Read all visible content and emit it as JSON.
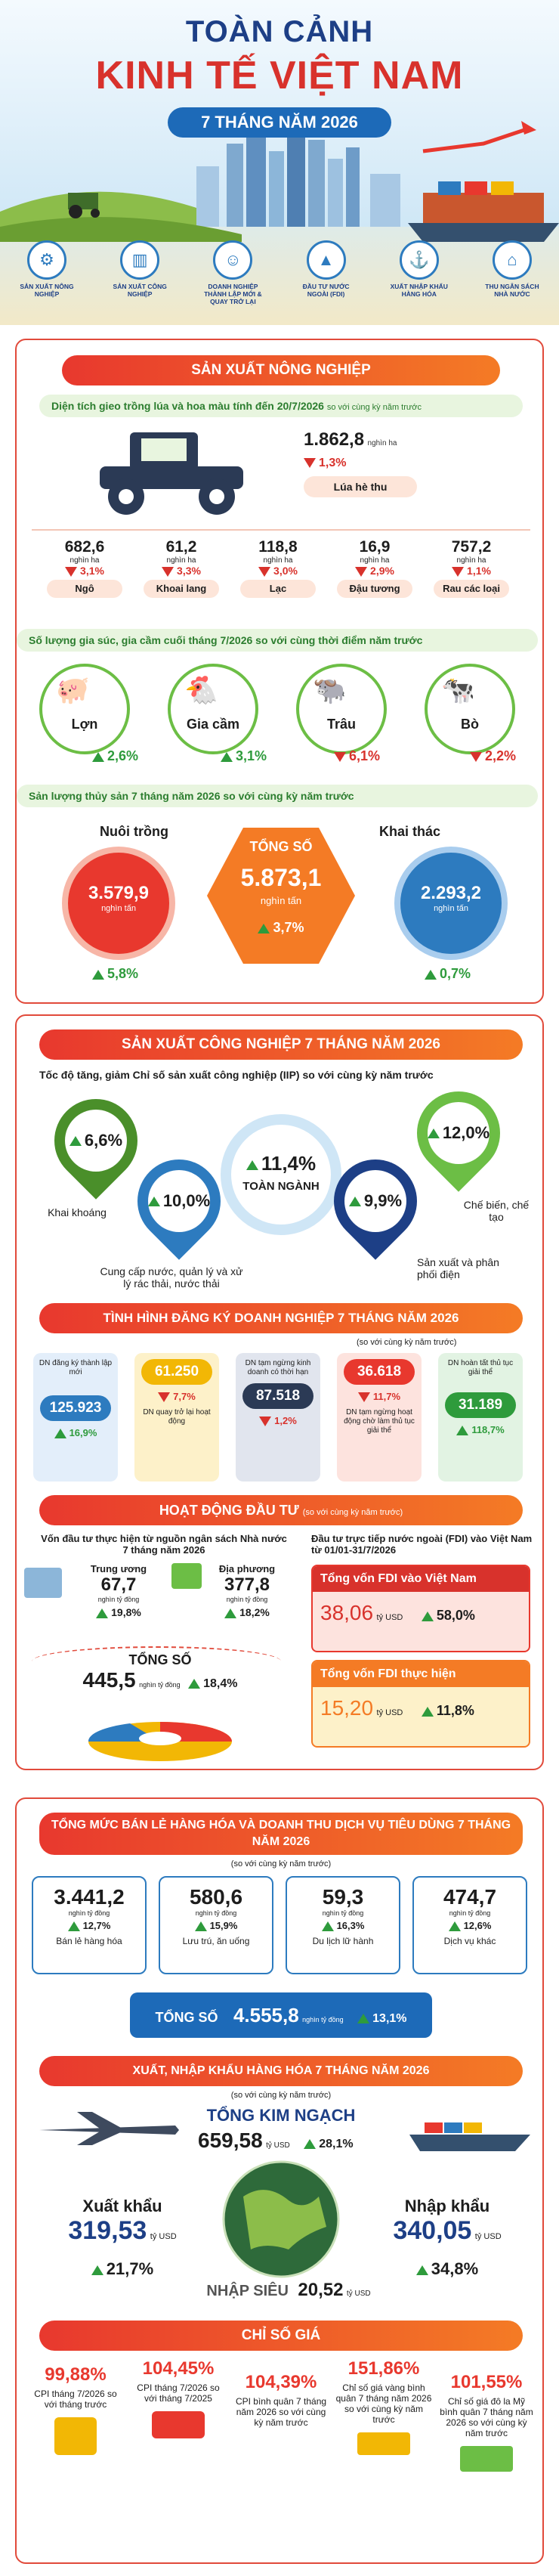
{
  "header": {
    "title_line1": "TOÀN CẢNH",
    "title_line2": "KINH TẾ VIỆT NAM",
    "subtitle": "7 THÁNG NĂM 2026",
    "icons": [
      {
        "icon": "tractor-icon",
        "label": "SẢN XUẤT NÔNG NGHIỆP"
      },
      {
        "icon": "factory-icon",
        "label": "SẢN XUẤT CÔNG NGHIỆP"
      },
      {
        "icon": "people-icon",
        "label": "DOANH NGHIỆP THÀNH LẬP MỚI & QUAY TRỞ LẠI"
      },
      {
        "icon": "chart-icon",
        "label": "ĐẦU TƯ NƯỚC NGOÀI (FDI)"
      },
      {
        "icon": "ship-icon",
        "label": "XUẤT NHẬP KHẨU HÀNG HÓA"
      },
      {
        "icon": "bank-icon",
        "label": "THU NGÂN SÁCH NHÀ NƯỚC"
      }
    ]
  },
  "agri": {
    "band": "SẢN XUẤT NÔNG NGHIỆP",
    "area_header": "Diện tích gieo trồng lúa và hoa màu tính đến 20/7/2026",
    "area_header_note": "so với cùng kỳ năm trước",
    "rice": {
      "value": "1.862,8",
      "unit": "nghìn ha",
      "pct": "1,3%",
      "name": "Lúa hè thu"
    },
    "crops": [
      {
        "value": "682,6",
        "unit": "nghìn ha",
        "pct": "3,1%",
        "name": "Ngô"
      },
      {
        "value": "61,2",
        "unit": "nghìn ha",
        "pct": "3,3%",
        "name": "Khoai lang"
      },
      {
        "value": "118,8",
        "unit": "nghìn ha",
        "pct": "3,0%",
        "name": "Lạc"
      },
      {
        "value": "16,9",
        "unit": "nghìn ha",
        "pct": "2,9%",
        "name": "Đậu tương"
      },
      {
        "value": "757,2",
        "unit": "nghìn ha",
        "pct": "1,1%",
        "name": "Rau các loại"
      }
    ],
    "livestock_header": "Số lượng gia súc, gia cầm cuối tháng 7/2026 so với cùng thời điểm năm trước",
    "livestock": [
      {
        "name": "Lợn",
        "pct": "2,6%",
        "dir": "up"
      },
      {
        "name": "Gia cầm",
        "pct": "3,1%",
        "dir": "up"
      },
      {
        "name": "Trâu",
        "pct": "6,1%",
        "dir": "down"
      },
      {
        "name": "Bò",
        "pct": "2,2%",
        "dir": "down"
      }
    ],
    "fish_header": "Sản lượng thủy sản 7 tháng năm 2026 so với cùng kỳ năm trước",
    "fish": {
      "farm": {
        "label": "Nuôi trồng",
        "value": "3.579,9",
        "unit": "nghìn tấn",
        "pct": "5,8%"
      },
      "total": {
        "label": "TỔNG SỐ",
        "value": "5.873,1",
        "unit": "nghìn tấn",
        "pct": "3,7%"
      },
      "catch": {
        "label": "Khai thác",
        "value": "2.293,2",
        "unit": "nghìn tấn",
        "pct": "0,7%"
      }
    }
  },
  "industry": {
    "band": "SẢN XUẤT CÔNG NGHIỆP 7 THÁNG NĂM 2026",
    "iip_header": "Tốc độ tăng, giảm Chỉ số sản xuất công nghiệp (IIP) so với cùng kỳ năm trước",
    "items": [
      {
        "name": "Khai khoáng",
        "pct": "6,6%",
        "dir": "up"
      },
      {
        "name": "Cung cấp nước, quản lý và xử lý rác thải, nước thải",
        "pct": "10,0%",
        "dir": "up"
      },
      {
        "name": "TOÀN NGÀNH",
        "pct": "11,4%",
        "dir": "up"
      },
      {
        "name": "Sản xuất và phân phối điện",
        "pct": "9,9%",
        "dir": "up"
      },
      {
        "name": "Chế biến, chế tạo",
        "pct": "12,0%",
        "dir": "up"
      }
    ]
  },
  "business": {
    "band": "TÌNH HÌNH ĐĂNG KÝ DOANH NGHIỆP 7 THÁNG NĂM 2026",
    "note": "(so với cùng kỳ năm trước)",
    "items": [
      {
        "name": "DN đăng ký thành lập mới",
        "value": "125.923",
        "pct": "16,9%",
        "dir": "up",
        "color": "#2d7bbf"
      },
      {
        "name": "DN quay trở lại hoạt động",
        "value": "61.250",
        "pct": "7,7%",
        "dir": "down",
        "color": "#f2b705"
      },
      {
        "name": "DN tạm ngừng kinh doanh có thời hạn",
        "value": "87.518",
        "pct": "1,2%",
        "dir": "down",
        "color": "#2b3a55"
      },
      {
        "name": "DN tạm ngừng hoạt động chờ làm thủ tục giải thể",
        "value": "36.618",
        "pct": "11,7%",
        "dir": "down",
        "color": "#e8382e"
      },
      {
        "name": "DN hoàn tất thủ tục giải thể",
        "value": "31.189",
        "pct": "118,7%",
        "dir": "up",
        "color": "#2e9b3c"
      }
    ]
  },
  "invest": {
    "band": "HOẠT ĐỘNG ĐẦU TƯ",
    "note": "(so với cùng kỳ năm trước)",
    "state_header": "Vốn đầu tư thực hiện từ nguồn ngân sách Nhà nước 7 tháng năm 2026",
    "central": {
      "label": "Trung ương",
      "value": "67,7",
      "unit": "nghìn tỷ đồng",
      "pct": "19,8%"
    },
    "local": {
      "label": "Địa phương",
      "value": "377,8",
      "unit": "nghìn tỷ đồng",
      "pct": "18,2%"
    },
    "total": {
      "label": "TỔNG SỐ",
      "value": "445,5",
      "unit": "nghìn tỷ đồng",
      "pct": "18,4%"
    },
    "fdi_header": "Đầu tư trực tiếp nước ngoài (FDI) vào Việt Nam từ 01/01-31/7/2026",
    "fdi_reg": {
      "label": "Tổng vốn FDI vào Việt Nam",
      "value": "38,06",
      "unit": "tỷ USD",
      "pct": "58,0%"
    },
    "fdi_real": {
      "label": "Tổng vốn FDI thực hiện",
      "value": "15,20",
      "unit": "tỷ USD",
      "pct": "11,8%"
    }
  },
  "retail": {
    "band": "TỔNG MỨC BÁN LẺ HÀNG HÓA VÀ DOANH THU DỊCH VỤ TIÊU DÙNG 7 THÁNG NĂM 2026",
    "note": "(so với cùng kỳ năm trước)",
    "items": [
      {
        "name": "Bán lẻ hàng hóa",
        "value": "3.441,2",
        "unit": "nghìn tỷ đồng",
        "pct": "12,7%"
      },
      {
        "name": "Lưu trú, ăn uống",
        "value": "580,6",
        "unit": "nghìn tỷ đồng",
        "pct": "15,9%"
      },
      {
        "name": "Du lịch lữ hành",
        "value": "59,3",
        "unit": "nghìn tỷ đồng",
        "pct": "16,3%"
      },
      {
        "name": "Dịch vụ khác",
        "value": "474,7",
        "unit": "nghìn tỷ đồng",
        "pct": "12,6%"
      }
    ],
    "total": {
      "label": "TỔNG SỐ",
      "value": "4.555,8",
      "unit": "nghìn tỷ đồng",
      "pct": "13,1%"
    }
  },
  "trade": {
    "band": "XUẤT, NHẬP KHẨU HÀNG HÓA 7 THÁNG NĂM 2026",
    "note": "(so với cùng kỳ năm trước)",
    "total": {
      "label": "TỔNG KIM NGẠCH",
      "value": "659,58",
      "unit": "tỷ USD",
      "pct": "28,1%"
    },
    "export": {
      "label": "Xuất khẩu",
      "value": "319,53",
      "unit": "tỷ USD",
      "pct": "21,7%"
    },
    "import": {
      "label": "Nhập khẩu",
      "value": "340,05",
      "unit": "tỷ USD",
      "pct": "34,8%"
    },
    "deficit": {
      "label": "NHẬP SIÊU",
      "value": "20,52",
      "unit": "tỷ USD"
    }
  },
  "prices": {
    "band": "CHỈ SỐ GIÁ",
    "items": [
      {
        "value": "99,88%",
        "name": "CPI tháng 7/2026 so với tháng trước"
      },
      {
        "value": "104,45%",
        "name": "CPI tháng 7/2026 so với tháng 7/2025"
      },
      {
        "value": "104,39%",
        "name": "CPI bình quân 7 tháng năm 2026 so với cùng kỳ năm trước"
      },
      {
        "value": "151,86%",
        "name": "Chỉ số giá vàng bình quân 7 tháng năm 2026 so với cùng kỳ năm trước"
      },
      {
        "value": "101,55%",
        "name": "Chỉ số giá đô la Mỹ bình quân 7 tháng năm 2026 so với cùng kỳ năm trước"
      }
    ]
  }
}
